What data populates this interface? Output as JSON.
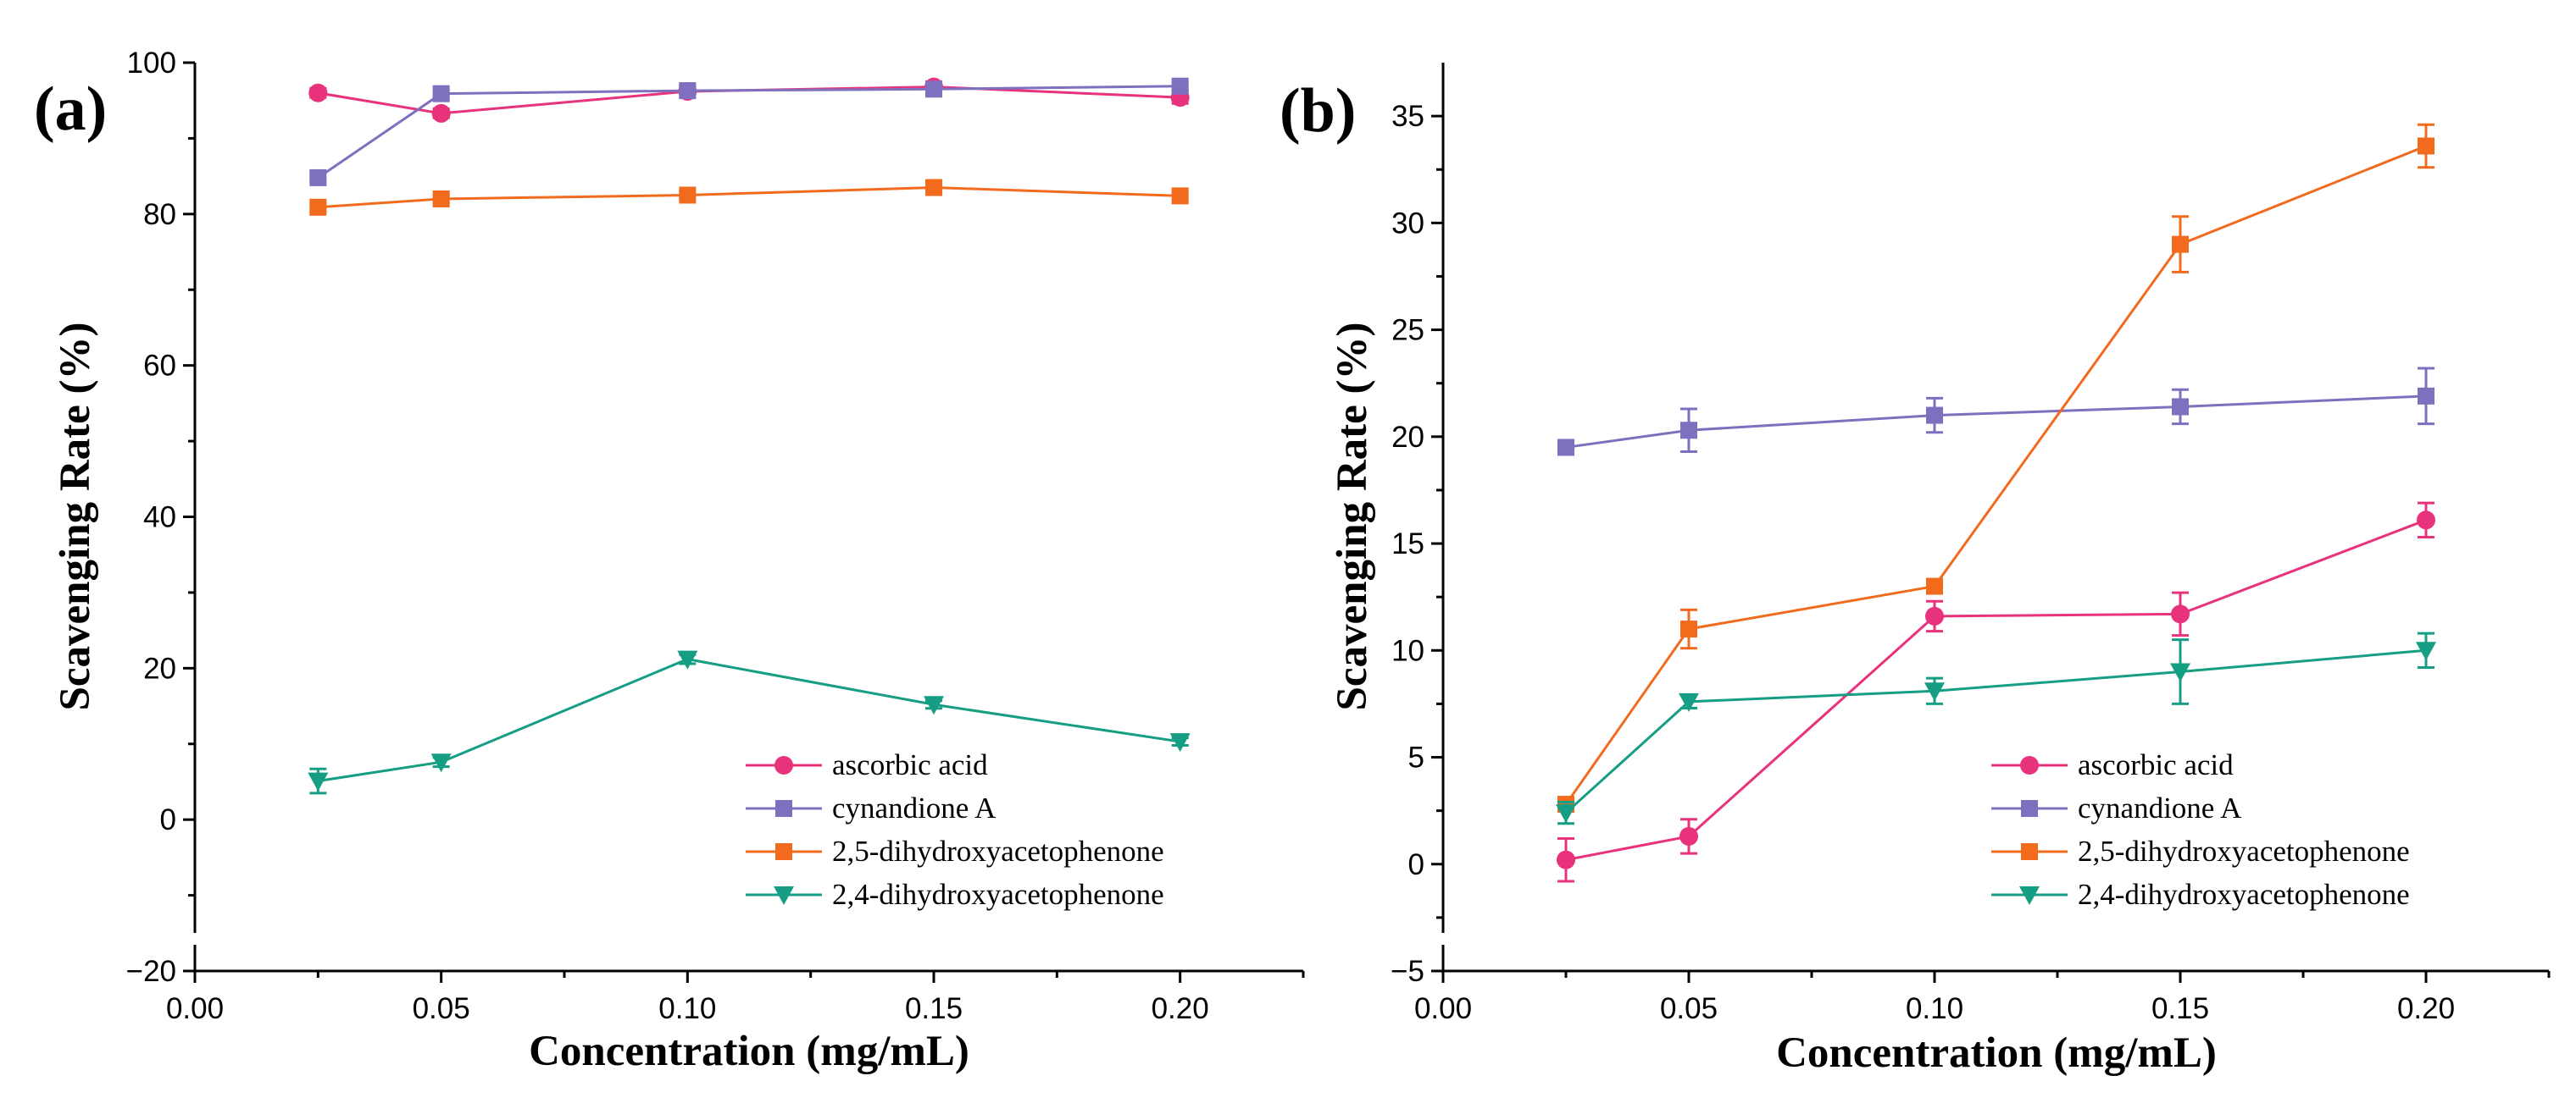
{
  "chart_data": [
    {
      "type": "line",
      "panel_label": "(a)",
      "xlabel": "Concentration (mg/mL)",
      "ylabel": "Scavenging Rate (%)",
      "xlim": [
        0.0,
        0.225
      ],
      "ylim": [
        -20,
        100
      ],
      "x_ticks": [
        0.0,
        0.05,
        0.1,
        0.15,
        0.2
      ],
      "x_tick_labels": [
        "0.00",
        "0.05",
        "0.10",
        "0.15",
        "0.20"
      ],
      "y_ticks": [
        -20,
        0,
        20,
        40,
        60,
        80,
        100
      ],
      "y_tick_labels": [
        "−20",
        "0",
        "20",
        "40",
        "60",
        "80",
        "100"
      ],
      "legend_position": "bottom-right",
      "x": [
        0.025,
        0.05,
        0.1,
        0.15,
        0.2
      ],
      "series": [
        {
          "name": "ascorbic acid",
          "color": "#E8327C",
          "marker": "circle",
          "values": [
            96.0,
            93.3,
            96.2,
            96.8,
            95.4
          ],
          "errors": [
            0.6,
            0.6,
            0.8,
            0.7,
            0.8
          ]
        },
        {
          "name": "cynandione A",
          "color": "#7F6FBF",
          "marker": "square",
          "values": [
            84.8,
            95.9,
            96.3,
            96.5,
            96.9
          ],
          "errors": [
            0.6,
            0.5,
            0.5,
            0.5,
            0.5
          ]
        },
        {
          "name": "2,5-dihydroxyacetophenone",
          "color": "#F26B1D",
          "marker": "square",
          "values": [
            80.9,
            82.0,
            82.5,
            83.5,
            82.4
          ],
          "errors": [
            0.6,
            0.5,
            0.5,
            0.6,
            0.5
          ]
        },
        {
          "name": "2,4-dihydroxyacetophenone",
          "color": "#159E84",
          "marker": "triangle-down",
          "values": [
            5.1,
            7.6,
            21.2,
            15.2,
            10.3
          ],
          "errors": [
            1.6,
            0.6,
            0.6,
            0.5,
            0.5
          ]
        }
      ]
    },
    {
      "type": "line",
      "panel_label": "(b)",
      "xlabel": "Concentration (mg/mL)",
      "ylabel": "Scavenging Rate (%)",
      "xlim": [
        0.0,
        0.225
      ],
      "ylim": [
        -5,
        37.5
      ],
      "x_ticks": [
        0.0,
        0.05,
        0.1,
        0.15,
        0.2
      ],
      "x_tick_labels": [
        "0.00",
        "0.05",
        "0.10",
        "0.15",
        "0.20"
      ],
      "y_ticks": [
        -5,
        0,
        5,
        10,
        15,
        20,
        25,
        30,
        35
      ],
      "y_tick_labels": [
        "−5",
        "0",
        "5",
        "10",
        "15",
        "20",
        "25",
        "30",
        "35"
      ],
      "legend_position": "bottom-right",
      "x": [
        0.025,
        0.05,
        0.1,
        0.15,
        0.2
      ],
      "series": [
        {
          "name": "ascorbic acid",
          "color": "#E8327C",
          "marker": "circle",
          "values": [
            0.2,
            1.3,
            11.6,
            11.7,
            16.1
          ],
          "errors": [
            1.0,
            0.8,
            0.7,
            1.0,
            0.8
          ]
        },
        {
          "name": "cynandione A",
          "color": "#7F6FBF",
          "marker": "square",
          "values": [
            19.5,
            20.3,
            21.0,
            21.4,
            21.9
          ],
          "errors": [
            0.2,
            1.0,
            0.8,
            0.8,
            1.3
          ]
        },
        {
          "name": "2,5-dihydroxyacetophenone",
          "color": "#F26B1D",
          "marker": "square",
          "values": [
            2.8,
            11.0,
            13.0,
            29.0,
            33.6
          ],
          "errors": [
            0.3,
            0.9,
            0.3,
            1.3,
            1.0
          ]
        },
        {
          "name": "2,4-dihydroxyacetophenone",
          "color": "#159E84",
          "marker": "triangle-down",
          "values": [
            2.4,
            7.6,
            8.1,
            9.0,
            10.0
          ],
          "errors": [
            0.5,
            0.3,
            0.6,
            1.5,
            0.8
          ]
        }
      ]
    }
  ]
}
